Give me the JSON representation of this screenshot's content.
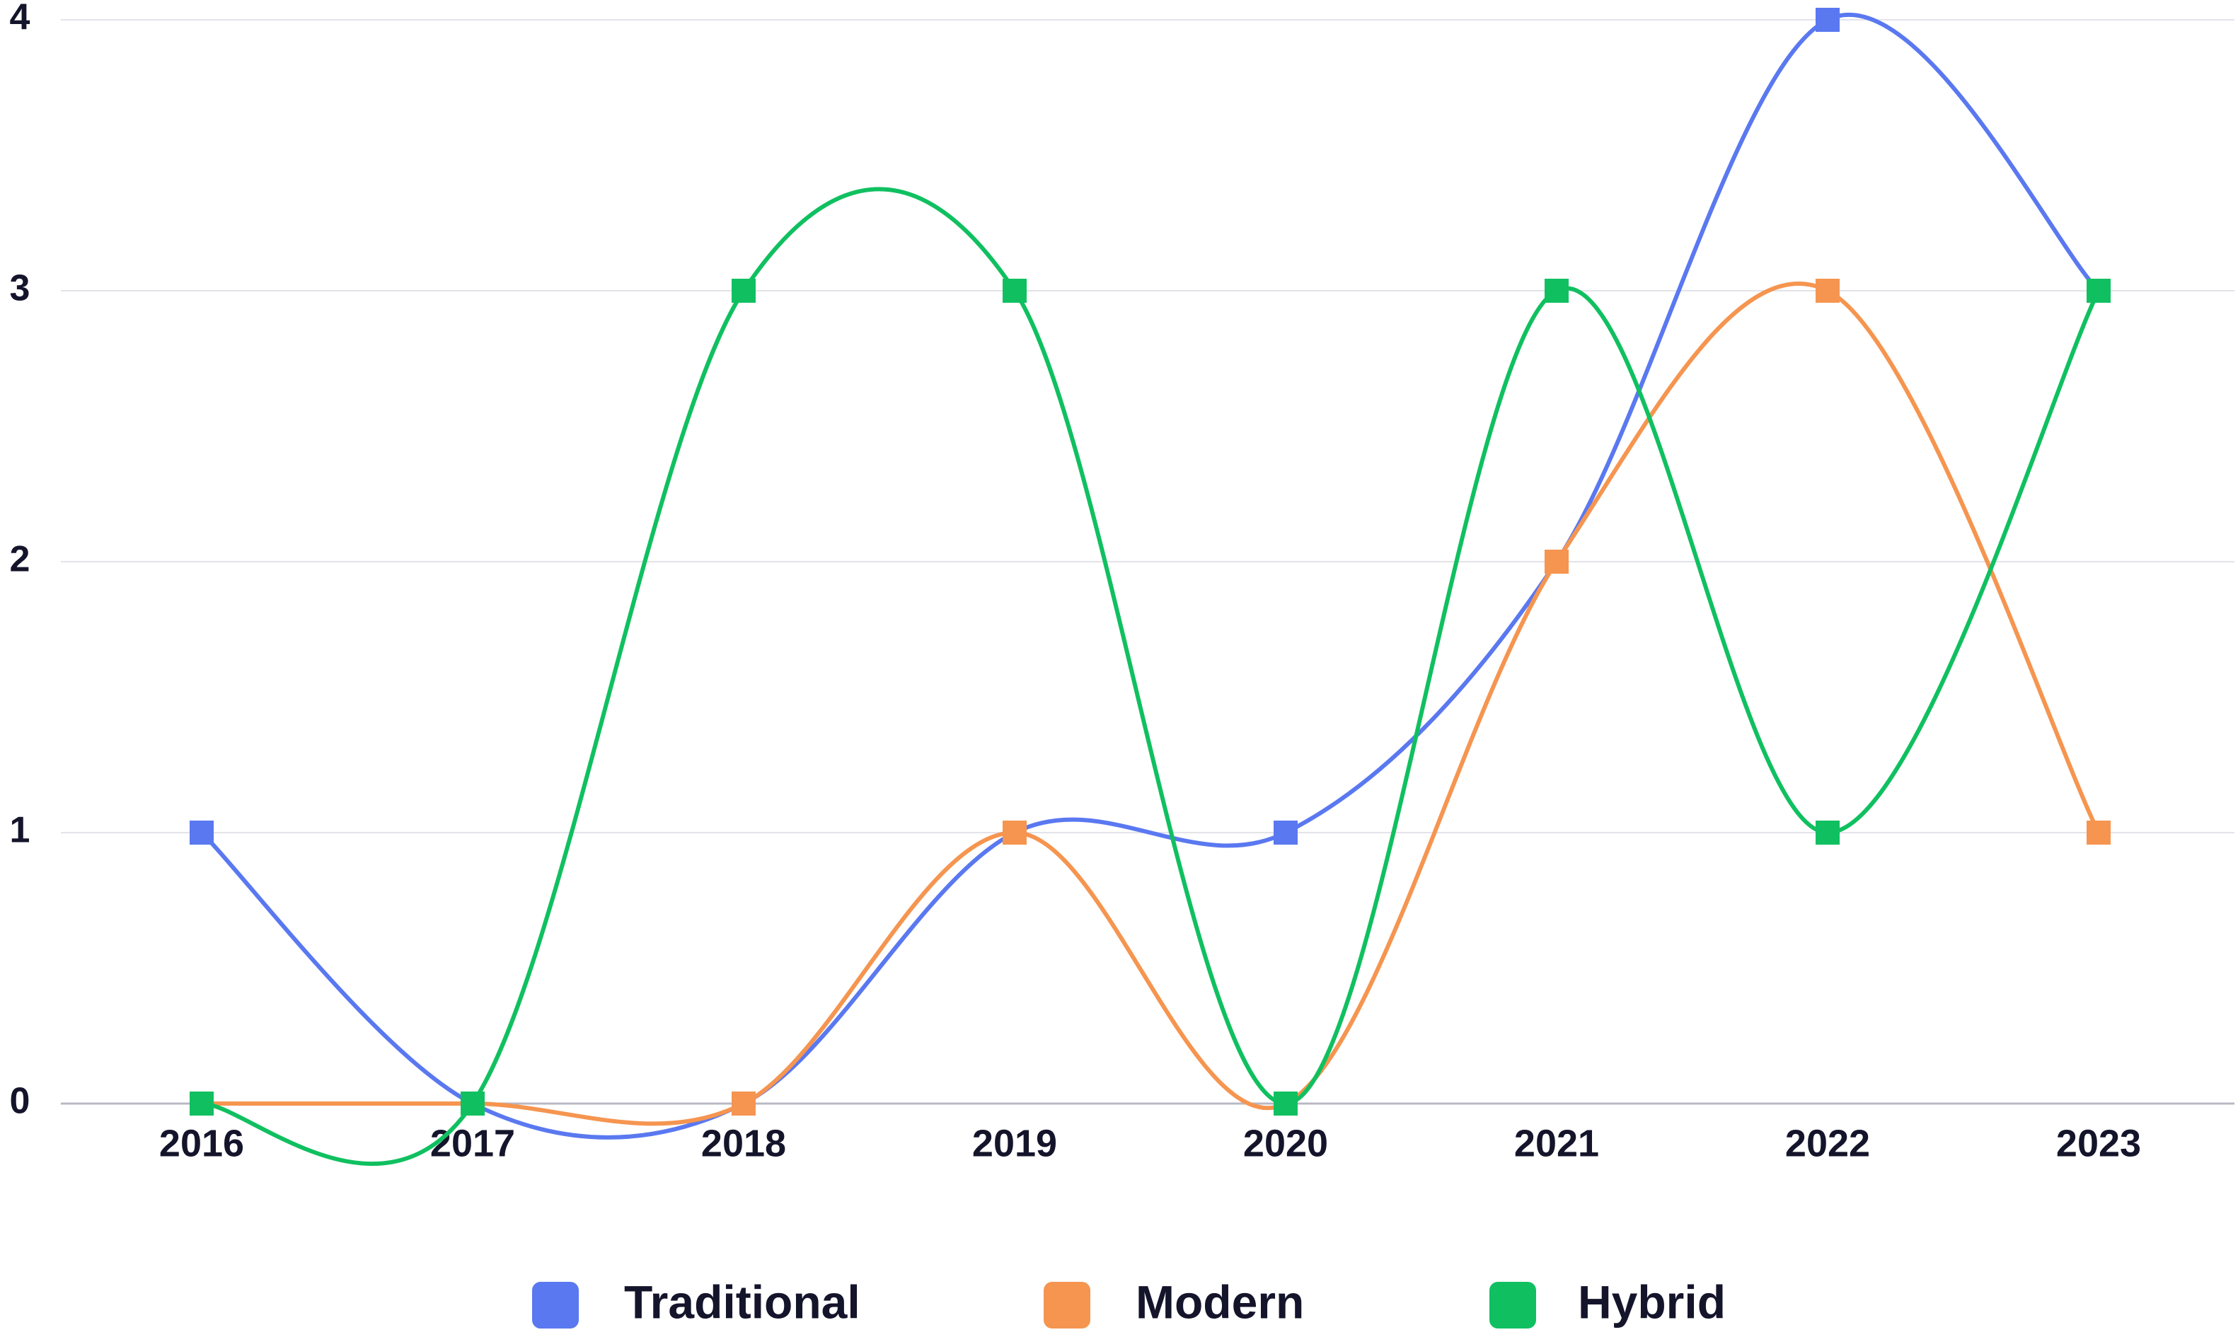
{
  "chart_data": {
    "type": "line",
    "categories": [
      "2016",
      "2017",
      "2018",
      "2019",
      "2020",
      "2021",
      "2022",
      "2023"
    ],
    "series": [
      {
        "name": "Traditional",
        "color": "#5a78f0",
        "values": [
          1,
          0,
          0,
          1,
          1,
          2,
          4,
          3
        ]
      },
      {
        "name": "Modern",
        "color": "#f59550",
        "values": [
          0,
          0,
          0,
          1,
          0,
          2,
          3,
          1
        ]
      },
      {
        "name": "Hybrid",
        "color": "#10c060",
        "values": [
          0,
          0,
          3,
          3,
          0,
          3,
          1,
          3
        ]
      }
    ],
    "ylim": [
      0,
      4
    ],
    "yticks": [
      "0",
      "1",
      "2",
      "3",
      "4"
    ],
    "grid": true,
    "smooth": true,
    "marker": "square",
    "legend_position": "bottom"
  }
}
